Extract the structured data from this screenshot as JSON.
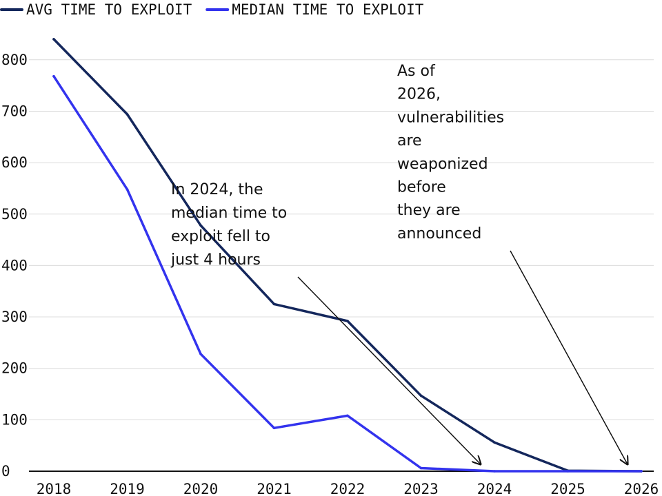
{
  "chart_data": {
    "type": "line",
    "x": [
      "2018",
      "2019",
      "2020",
      "2021",
      "2022",
      "2023",
      "2024",
      "2025",
      "2026"
    ],
    "series": [
      {
        "name": "AVG TIME TO EXPLOIT",
        "color": "#14275c",
        "values": [
          840,
          694,
          478,
          325,
          292,
          147,
          56,
          1,
          0
        ]
      },
      {
        "name": "MEDIAN TIME TO EXPLOIT",
        "color": "#3333ee",
        "values": [
          768,
          548,
          228,
          84,
          108,
          6,
          0,
          0,
          0
        ]
      }
    ],
    "ylim": [
      0,
      840
    ],
    "yticks": [
      "0",
      "100",
      "200",
      "300",
      "400",
      "500",
      "600",
      "700",
      "800"
    ],
    "grid": true,
    "legend_position": "top-left",
    "annotations": [
      {
        "lines": [
          "In 2024, the",
          "median time to",
          "exploit fell to",
          "just 4 hours"
        ],
        "points_to": {
          "x": "2024",
          "y": 0
        }
      },
      {
        "lines": [
          "As of",
          "2026,",
          "vulnerabilities",
          "are",
          "weaponized",
          "before",
          "they are",
          "announced"
        ],
        "points_to": {
          "x": "2026",
          "y": 0
        }
      }
    ]
  }
}
